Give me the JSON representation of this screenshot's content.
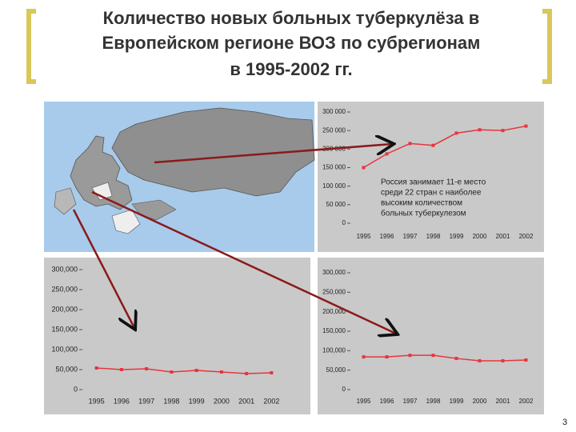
{
  "header": {
    "title_lines": [
      "Количество новых больных туберкулёза в",
      "Европейском регионе ВОЗ по субрегионам",
      "в 1995-2002 гг."
    ]
  },
  "footer": {
    "page_number": "3"
  },
  "chart_data": [
    {
      "type": "line",
      "color": "#e8343c",
      "categories": [
        "1995",
        "1996",
        "1997",
        "1998",
        "1999",
        "2000",
        "2001",
        "2002"
      ],
      "values": [
        150000,
        187000,
        215000,
        210000,
        243000,
        252000,
        250000,
        262000
      ],
      "ylim": [
        0,
        300000
      ],
      "yticks": [
        0,
        {
          "value": 50000,
          "label": "50 000"
        },
        {
          "value": 100000,
          "label": "100 000"
        },
        {
          "value": 150000,
          "label": "150 000"
        },
        {
          "value": 200000,
          "label": "200 000"
        },
        {
          "value": 250000,
          "label": "250 000"
        },
        {
          "value": 300000,
          "label": "300 000"
        }
      ],
      "grid": false,
      "annotation_lines": [
        "Россия занимает 11-е место",
        "среди 22 стран с наиболее",
        "высоким количеством",
        "больных  туберкулезом"
      ]
    },
    {
      "type": "line",
      "color": "#e8343c",
      "categories": [
        "1995",
        "1996",
        "1997",
        "1998",
        "1999",
        "2000",
        "2001",
        "2002"
      ],
      "values": [
        54000,
        50000,
        52000,
        44000,
        48000,
        44000,
        40000,
        42000
      ],
      "ylim": [
        0,
        300000
      ],
      "yticks": [
        0,
        {
          "value": 50000,
          "label": "50,000"
        },
        {
          "value": 100000,
          "label": "100,000"
        },
        {
          "value": 150000,
          "label": "150,000"
        },
        {
          "value": 200000,
          "label": "200,000"
        },
        {
          "value": 250000,
          "label": "250,000"
        },
        {
          "value": 300000,
          "label": "300,000"
        }
      ],
      "grid": false
    },
    {
      "type": "line",
      "color": "#e8343c",
      "categories": [
        "1995",
        "1996",
        "1997",
        "1998",
        "1999",
        "2000",
        "2001",
        "2002"
      ],
      "values": [
        84000,
        84000,
        88000,
        88000,
        80000,
        74000,
        74000,
        76000
      ],
      "ylim": [
        0,
        300000
      ],
      "yticks": [
        0,
        {
          "value": 50000,
          "label": "50,000"
        },
        {
          "value": 100000,
          "label": "100,000"
        },
        {
          "value": 150000,
          "label": "150,000"
        },
        {
          "value": 200000,
          "label": "200,000"
        },
        {
          "value": 250000,
          "label": "250,000"
        },
        {
          "value": 300000,
          "label": "300,000"
        }
      ],
      "grid": false
    }
  ]
}
